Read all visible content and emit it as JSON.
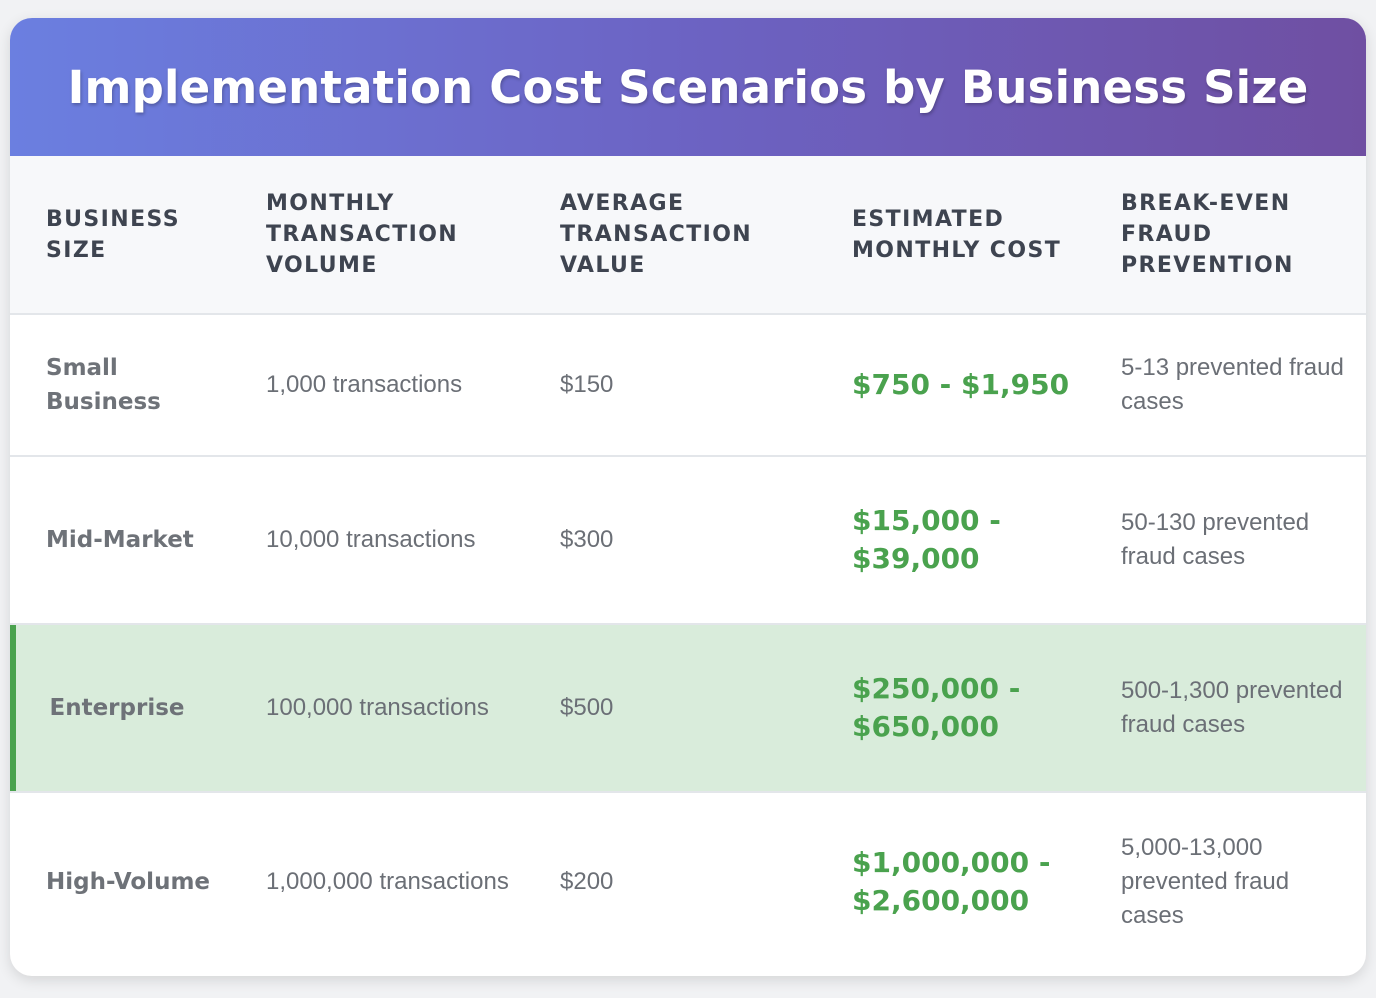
{
  "title": "Implementation Cost Scenarios by Business Size",
  "columns": [
    "Business Size",
    "Monthly Transaction Volume",
    "Average Transaction Value",
    "Estimated Monthly Cost",
    "Break-Even Fraud Prevention"
  ],
  "rows": [
    {
      "size": "Small Business",
      "volume": "1,000 transactions",
      "avg_value": "$150",
      "cost": "$750 - $1,950",
      "break_even": "5-13 prevented fraud cases"
    },
    {
      "size": "Mid-Market",
      "volume": "10,000 transactions",
      "avg_value": "$300",
      "cost": "$15,000 - $39,000",
      "break_even": "50-130 prevented fraud cases"
    },
    {
      "size": "Enterprise",
      "volume": "100,000 transactions",
      "avg_value": "$500",
      "cost": "$250,000 - $650,000",
      "break_even": "500-1,300 prevented fraud cases"
    },
    {
      "size": "High-Volume",
      "volume": "1,000,000 transactions",
      "avg_value": "$200",
      "cost": "$1,000,000 - $2,600,000",
      "break_even": "5,000-13,000 prevented fraud cases"
    }
  ],
  "highlighted_row": "Enterprise",
  "colors": {
    "header_gradient_start": "#6b7fe0",
    "header_gradient_end": "#6f4fa2",
    "cost_green": "#4aa24e",
    "highlight_bg": "#d9ecdb"
  }
}
